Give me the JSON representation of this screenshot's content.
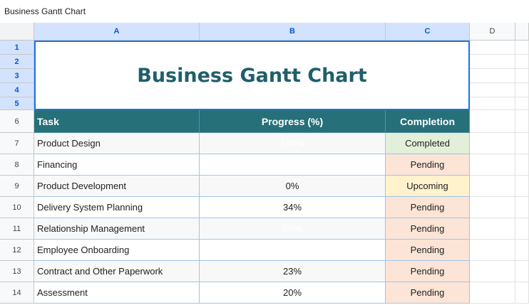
{
  "window_title": "Business Gantt Chart",
  "column_headers": [
    "A",
    "B",
    "C",
    "D"
  ],
  "row_numbers": [
    1,
    2,
    3,
    4,
    5,
    6,
    7,
    8,
    9,
    10,
    11,
    12,
    13,
    14
  ],
  "sheet_title": "Business Gantt Chart",
  "table": {
    "headers": [
      "Task",
      "Progress (%)",
      "Completion"
    ],
    "header_color": "#26707a",
    "rows": [
      {
        "task": "Product Design",
        "progress": "100%",
        "progress_color": "#ffffff",
        "status": "Completed",
        "status_color": "#e2efd9"
      },
      {
        "task": "Financing",
        "status": "Pending",
        "status_color": "#fce4d6"
      },
      {
        "task": "Product Development",
        "progress": "0%",
        "status": "Upcoming",
        "status_color": "#fff2cc"
      },
      {
        "task": "Delivery System Planning",
        "progress": "34%",
        "status": "Pending",
        "status_color": "#fce4d6"
      },
      {
        "task": "Relationship Management",
        "progress": "50%",
        "progress_color": "#ffffff",
        "status": "Pending",
        "status_color": "#fce4d6"
      },
      {
        "task": "Employee Onboarding",
        "status": "Pending",
        "status_color": "#fce4d6"
      },
      {
        "task": "Contract and Other Paperwork",
        "progress": "23%",
        "status": "Pending",
        "status_color": "#fce4d6"
      },
      {
        "task": "Assessment",
        "progress": "20%",
        "status": "Pending",
        "status_color": "#fce4d6"
      }
    ]
  }
}
